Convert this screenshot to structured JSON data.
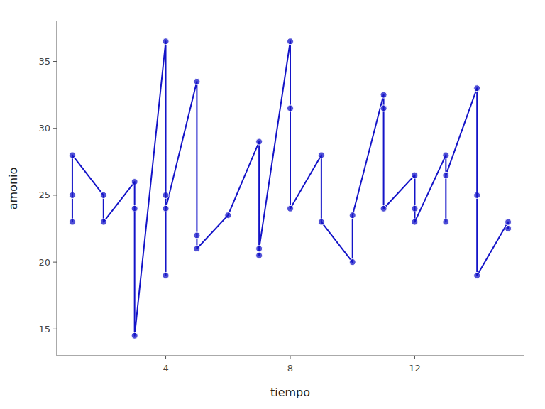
{
  "chart_data": {
    "type": "line",
    "x": [
      1,
      1,
      1,
      2,
      2,
      3,
      3,
      3,
      4,
      4,
      4,
      4,
      5,
      5,
      5,
      6,
      7,
      7,
      7,
      8,
      8,
      8,
      9,
      9,
      10,
      10,
      11,
      11,
      11,
      12,
      12,
      12,
      13,
      13,
      13,
      14,
      14,
      14,
      15,
      15
    ],
    "values": [
      23,
      25,
      28,
      25,
      23,
      26,
      24,
      14.5,
      36.5,
      19,
      25,
      24,
      33.5,
      22,
      21,
      23.5,
      29,
      20.5,
      21,
      36.5,
      31.5,
      24,
      28,
      23,
      20,
      23.5,
      32.5,
      31.5,
      24,
      26.5,
      24,
      23,
      28,
      23,
      26.5,
      33,
      25,
      19,
      23,
      22.5
    ],
    "xlabel": "tiempo",
    "ylabel": "amonio",
    "xlim": [
      0.5,
      15.5
    ],
    "ylim": [
      13,
      38
    ],
    "xticks": [
      4,
      8,
      12
    ],
    "yticks": [
      15,
      20,
      25,
      30,
      35
    ],
    "grid": false,
    "color": "#1414c8",
    "marker": "circle"
  }
}
